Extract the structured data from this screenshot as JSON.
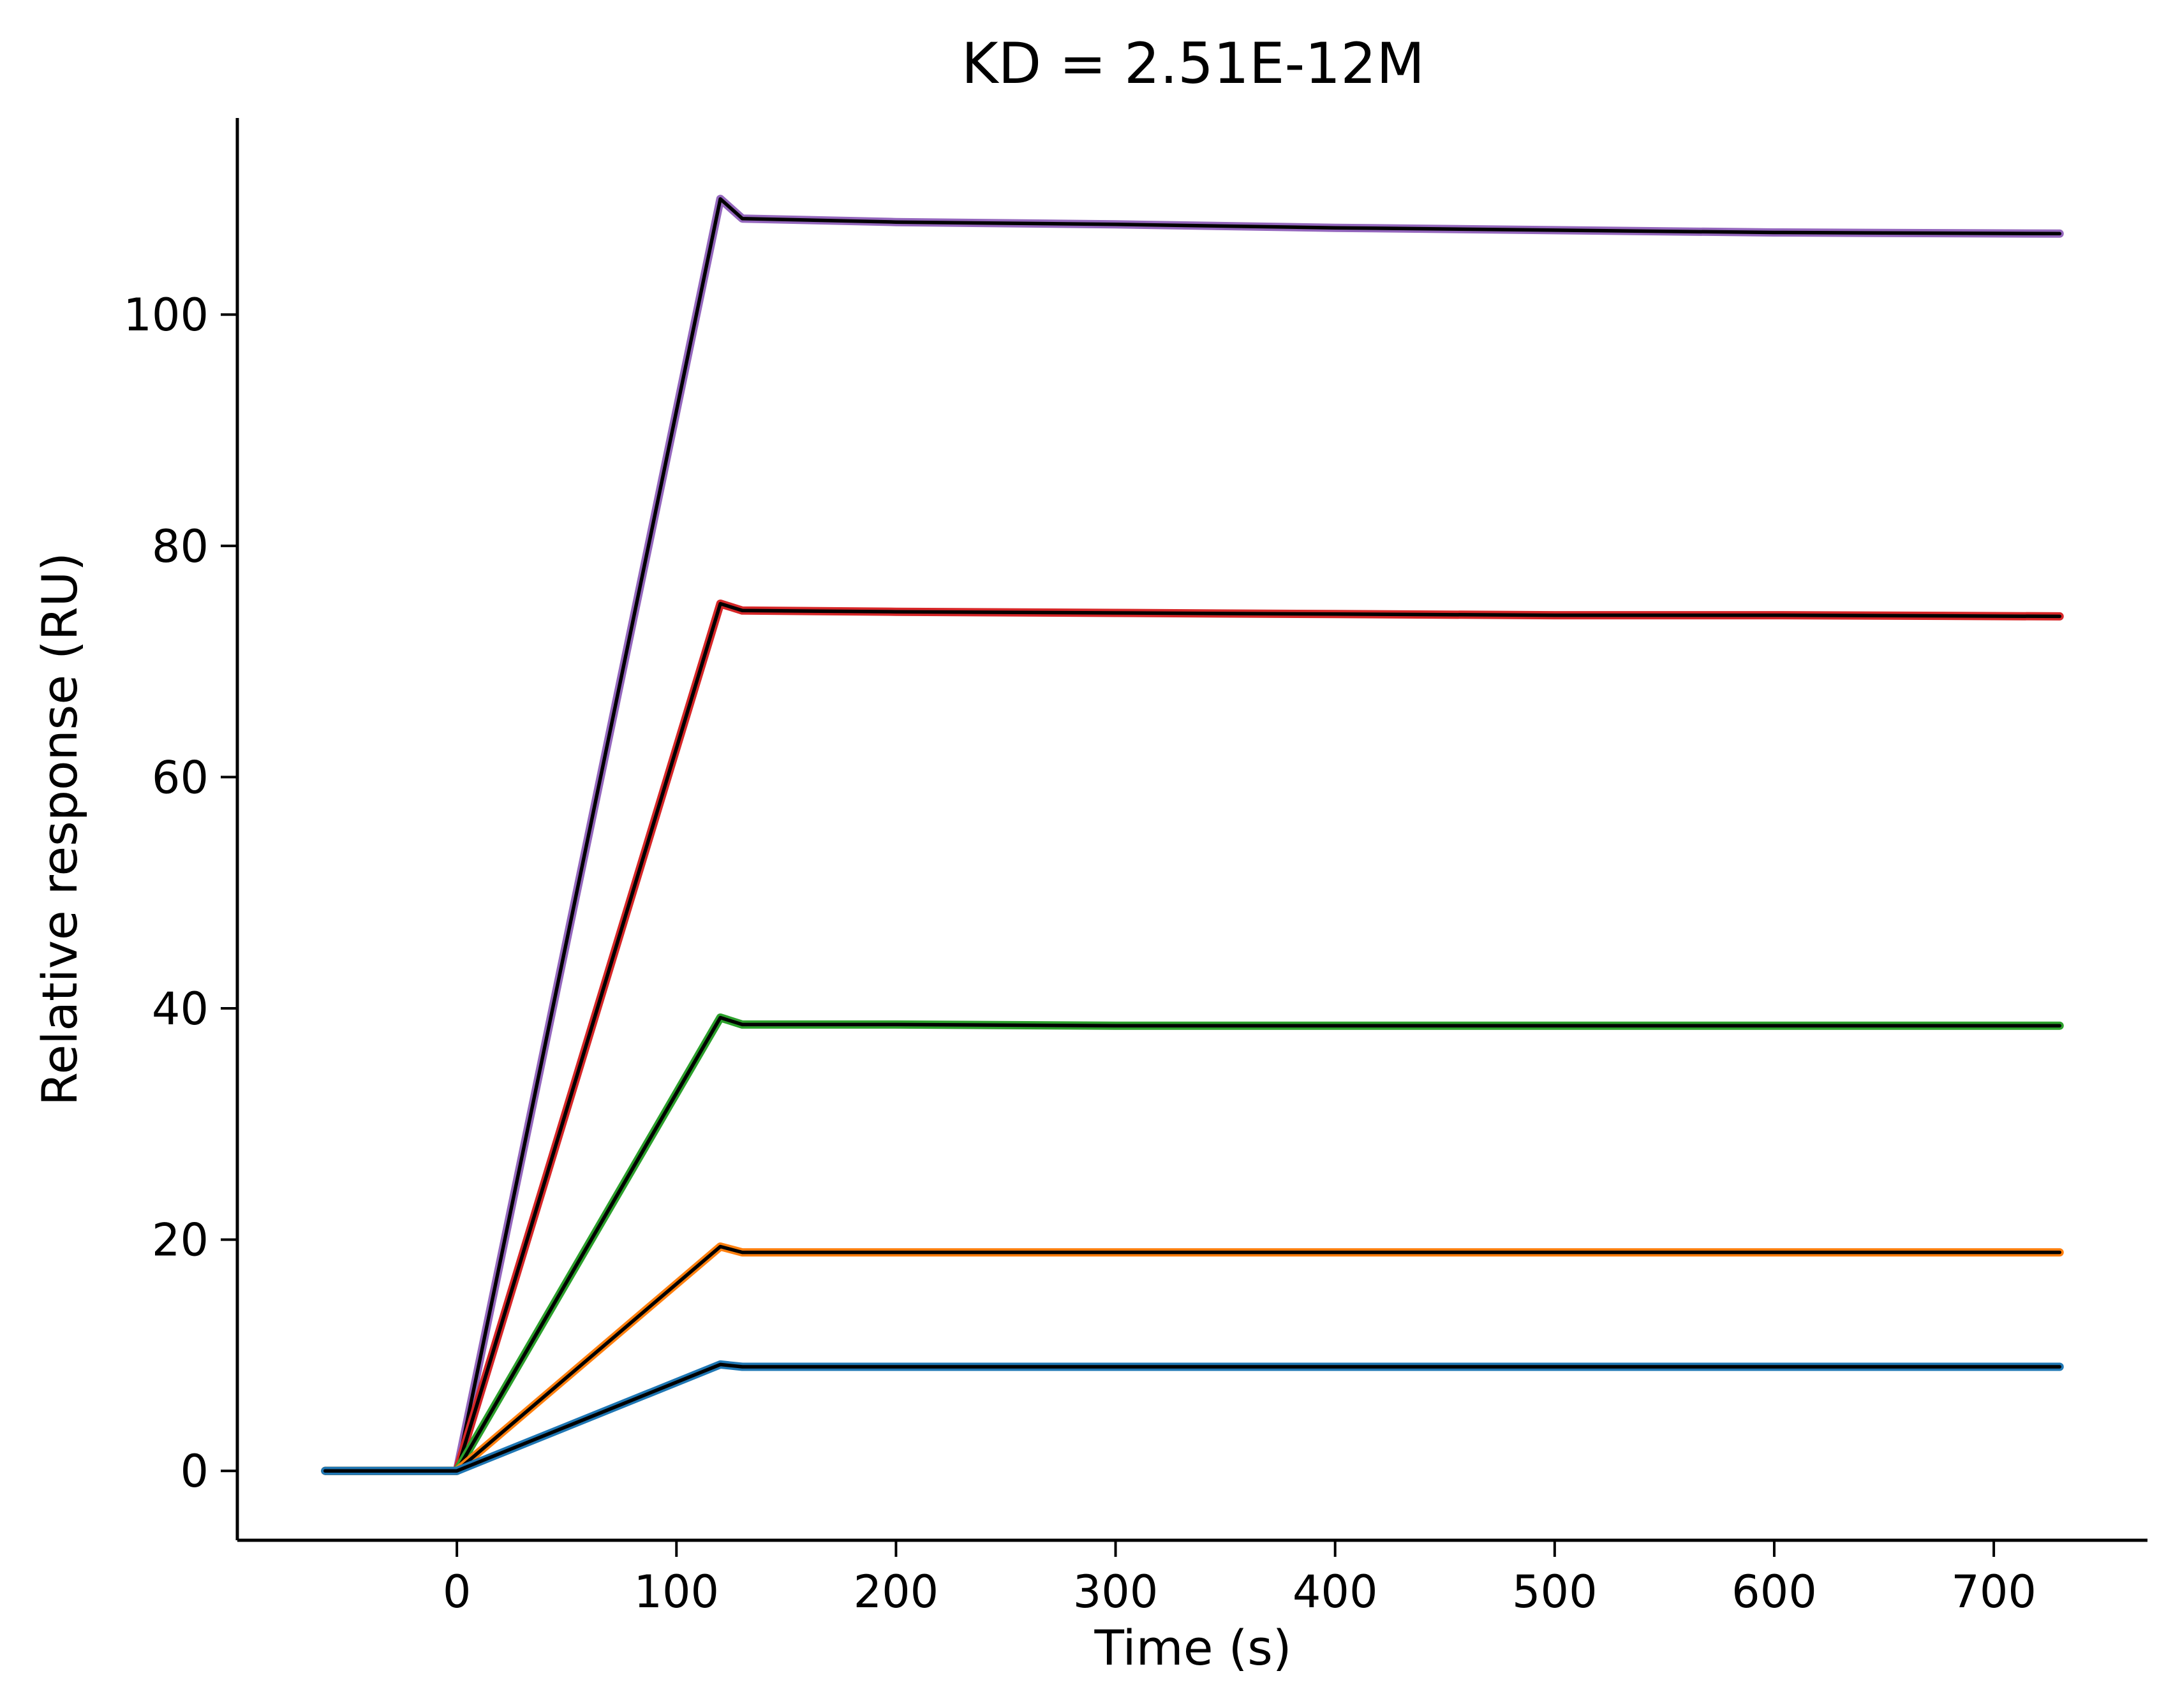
{
  "chart_data": {
    "type": "line",
    "title": "KD = 2.51E-12M",
    "xlabel": "Time (s)",
    "ylabel": "Relative response (RU)",
    "xlim": [
      -100,
      770
    ],
    "ylim": [
      -6,
      117
    ],
    "xticks": [
      0,
      100,
      200,
      300,
      400,
      500,
      600,
      700
    ],
    "yticks": [
      0,
      20,
      40,
      60,
      80,
      100
    ],
    "grid": false,
    "legend": "none",
    "x": [
      -60,
      0,
      120,
      130,
      200,
      300,
      400,
      500,
      600,
      730
    ],
    "series": [
      {
        "color": "#9467bd",
        "values": [
          0,
          0,
          110.0,
          108.3,
          108.0,
          107.8,
          107.5,
          107.3,
          107.1,
          107.0
        ]
      },
      {
        "color": "#d62728",
        "values": [
          0,
          0,
          75.0,
          74.4,
          74.3,
          74.2,
          74.1,
          74.0,
          74.0,
          73.9
        ]
      },
      {
        "color": "#2ca02c",
        "values": [
          0,
          0,
          39.2,
          38.6,
          38.6,
          38.5,
          38.5,
          38.5,
          38.5,
          38.5
        ]
      },
      {
        "color": "#ff7f0e",
        "values": [
          0,
          0,
          19.4,
          18.9,
          18.9,
          18.9,
          18.9,
          18.9,
          18.9,
          18.9
        ]
      },
      {
        "color": "#1f77b4",
        "values": [
          0,
          0,
          9.2,
          9.0,
          9.0,
          9.0,
          9.0,
          9.0,
          9.0,
          9.0
        ]
      }
    ],
    "fit_color": "#000000"
  }
}
